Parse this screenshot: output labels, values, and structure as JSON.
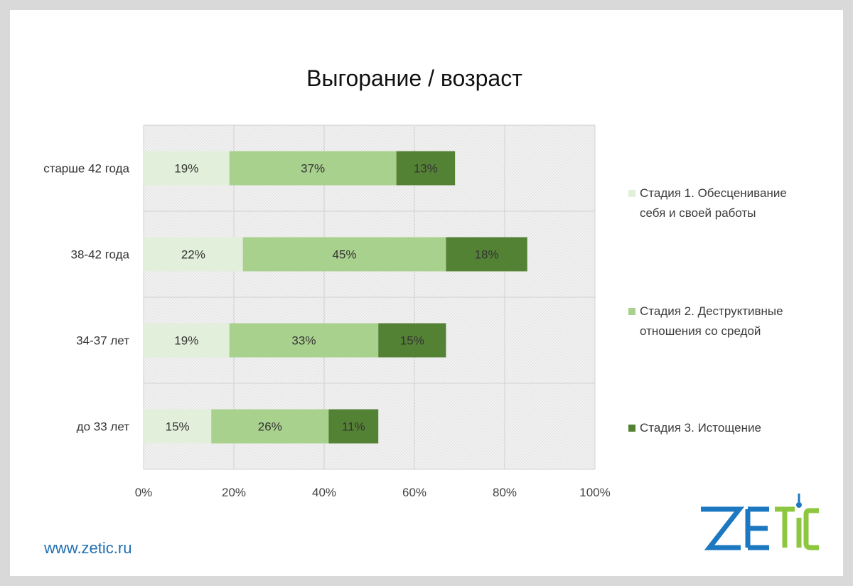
{
  "slide": {
    "website": "www.zetic.ru",
    "logo": {
      "text": "ZETIC",
      "colors": {
        "blue": "#1c78c0",
        "green": "#8dc63f"
      }
    }
  },
  "chart_data": {
    "type": "bar",
    "orientation": "horizontal",
    "stacked": true,
    "title": "Выгорание / возраст",
    "categories": [
      "старше 42 года",
      "38-42 года",
      "34-37 лет",
      "до 33 лет"
    ],
    "series": [
      {
        "name": "Стадия 1.  Обесценивание\nсебя и своей работы",
        "values": [
          19,
          22,
          19,
          15
        ],
        "labels": [
          "19%",
          "22%",
          "19%",
          "15%"
        ],
        "color": "#e2efda"
      },
      {
        "name": "Стадия 2.  Деструктивные\nотношения со средой",
        "values": [
          37,
          45,
          33,
          26
        ],
        "labels": [
          "37%",
          "45%",
          "33%",
          "26%"
        ],
        "color": "#a9d18e"
      },
      {
        "name": "Стадия 3.  Истощение",
        "values": [
          13,
          18,
          15,
          11
        ],
        "labels": [
          "13%",
          "18%",
          "15%",
          "11%"
        ],
        "color": "#548235"
      }
    ],
    "xlim": [
      0,
      100
    ],
    "xticks": [
      "0%",
      "20%",
      "40%",
      "60%",
      "80%",
      "100%"
    ],
    "grid": true,
    "legend_position": "right"
  }
}
